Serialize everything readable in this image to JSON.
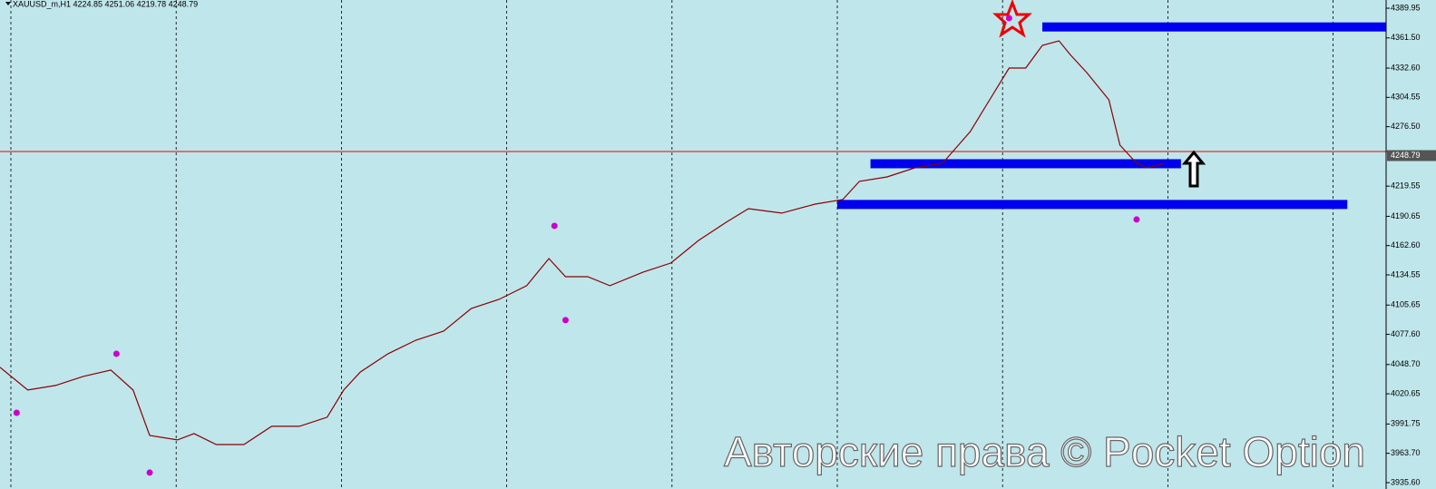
{
  "chart_data": {
    "type": "line",
    "title": "XAUUSD_m,H1  4224.85 4251.06 4219.78 4248.79",
    "watermark": "Авторские права © Pocket Option",
    "xlim": [
      0,
      250
    ],
    "ylim": [
      3929.5,
      4397.8
    ],
    "yticks": [
      {
        "value": 4389.95,
        "label": "4389.95"
      },
      {
        "value": 4361.5,
        "label": "4361.50"
      },
      {
        "value": 4332.6,
        "label": "4332.60"
      },
      {
        "value": 4304.55,
        "label": "4304.55"
      },
      {
        "value": 4276.5,
        "label": "4276.50"
      },
      {
        "value": 4219.55,
        "label": "4219.55"
      },
      {
        "value": 4190.65,
        "label": "4190.65"
      },
      {
        "value": 4162.6,
        "label": "4162.60"
      },
      {
        "value": 4134.55,
        "label": "4134.55"
      },
      {
        "value": 4105.65,
        "label": "4105.65"
      },
      {
        "value": 4077.6,
        "label": "4077.60"
      },
      {
        "value": 4048.7,
        "label": "4048.70"
      },
      {
        "value": 4020.65,
        "label": "4020.65"
      },
      {
        "value": 3991.75,
        "label": "3991.75"
      },
      {
        "value": 3963.7,
        "label": "3963.70"
      },
      {
        "value": 3935.6,
        "label": "3935.60"
      }
    ],
    "last_price": {
      "value": 4248.79,
      "label": "4248.79"
    },
    "price_line": 4252.7,
    "grid": true,
    "series": [
      {
        "name": "XAUUSD_m",
        "color": "#8b0000",
        "x": [
          0,
          5,
          10,
          15,
          20,
          24,
          27,
          32,
          35,
          39,
          44,
          49,
          54,
          59,
          62,
          65,
          70,
          75,
          80,
          85,
          90,
          95,
          99,
          102,
          106,
          110,
          116,
          121,
          126,
          131,
          135,
          141,
          147,
          152,
          155,
          160,
          165,
          170,
          175,
          178,
          182,
          185,
          188,
          191,
          193,
          196,
          200,
          202,
          205,
          207,
          210
        ],
        "values": [
          4046.0,
          4024.3,
          4028.6,
          4037.3,
          4043.4,
          4024.3,
          3980.8,
          3976.5,
          3982.6,
          3972.1,
          3972.1,
          3989.5,
          3989.5,
          3998.2,
          4024.3,
          4041.6,
          4059.0,
          4072.0,
          4080.7,
          4102.4,
          4111.1,
          4124.2,
          4150.2,
          4132.8,
          4132.8,
          4124.2,
          4137.2,
          4145.9,
          4167.6,
          4185.0,
          4198.0,
          4193.7,
          4202.3,
          4206.7,
          4224.1,
          4228.4,
          4237.1,
          4241.4,
          4271.8,
          4297.9,
          4332.6,
          4332.6,
          4354.4,
          4358.7,
          4345.7,
          4328.3,
          4302.2,
          4258.8,
          4241.4,
          4237.1,
          4241.4
        ]
      },
      {
        "name": "fractals",
        "color": "#cc00cc",
        "x": [
          3,
          21,
          27,
          100,
          102,
          182,
          205
        ],
        "values": [
          4002.5,
          4059.0,
          3945.2,
          4181.5,
          4091.2,
          4380.4,
          4187.6
        ]
      }
    ],
    "levels": [
      {
        "value": 4372.0,
        "x": [
          188,
          250
        ],
        "color": "#0000ee"
      },
      {
        "value": 4241.0,
        "x": [
          157,
          213
        ],
        "color": "#0000ee"
      },
      {
        "value": 4202.0,
        "x": [
          151,
          243
        ],
        "color": "#0000ee"
      }
    ]
  }
}
